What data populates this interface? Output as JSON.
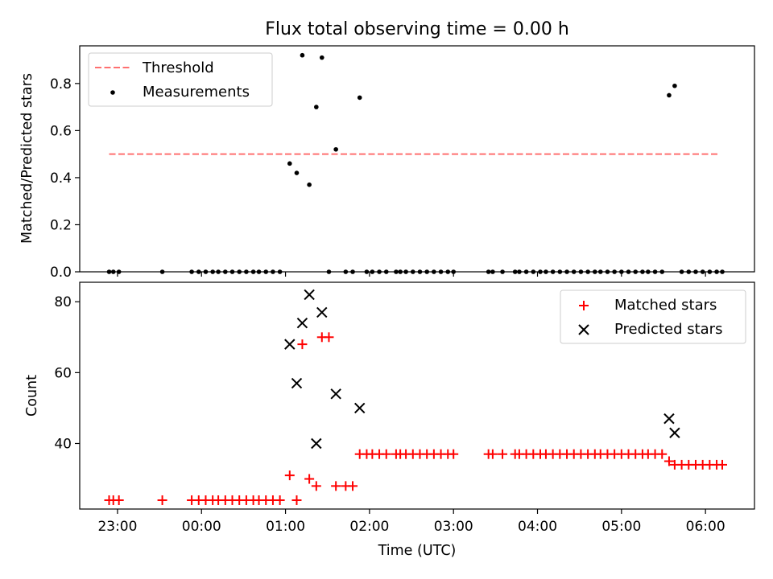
{
  "figure": {
    "title": "Flux total observing time = 0.00 h",
    "xlabel": "Time (UTC)"
  },
  "chart_data": [
    {
      "type": "scatter",
      "id": "ratio",
      "title": "Flux total observing time = 0.00 h",
      "ylabel": "Matched/Predicted stars",
      "xlim": [
        "22:33",
        "06:35"
      ],
      "ylim": [
        0,
        0.96
      ],
      "y_ticks": [
        0.0,
        0.2,
        0.4,
        0.6,
        0.8
      ],
      "y_tick_labels": [
        "0.0",
        "0.2",
        "0.4",
        "0.6",
        "0.8"
      ],
      "legend_position": "top-left",
      "series": [
        {
          "name": "Threshold",
          "kind": "line",
          "style": "dashed",
          "color": "#ff7070",
          "points": [
            {
              "x": "22:54",
              "y": 0.5
            },
            {
              "x": "06:10",
              "y": 0.5
            }
          ]
        },
        {
          "name": "Measurements",
          "kind": "scatter",
          "marker": "dot",
          "color": "#000000",
          "points": [
            {
              "x": "22:54",
              "y": 0
            },
            {
              "x": "22:57",
              "y": 0
            },
            {
              "x": "23:01",
              "y": 0
            },
            {
              "x": "23:32",
              "y": 0
            },
            {
              "x": "23:53",
              "y": 0
            },
            {
              "x": "23:58",
              "y": 0
            },
            {
              "x": "00:03",
              "y": 0
            },
            {
              "x": "00:08",
              "y": 0
            },
            {
              "x": "00:12",
              "y": 0
            },
            {
              "x": "00:17",
              "y": 0
            },
            {
              "x": "00:22",
              "y": 0
            },
            {
              "x": "00:27",
              "y": 0
            },
            {
              "x": "00:32",
              "y": 0
            },
            {
              "x": "00:37",
              "y": 0
            },
            {
              "x": "00:41",
              "y": 0
            },
            {
              "x": "00:46",
              "y": 0
            },
            {
              "x": "00:51",
              "y": 0
            },
            {
              "x": "00:56",
              "y": 0
            },
            {
              "x": "01:03",
              "y": 0.46
            },
            {
              "x": "01:08",
              "y": 0.42
            },
            {
              "x": "01:12",
              "y": 0.92
            },
            {
              "x": "01:17",
              "y": 0.37
            },
            {
              "x": "01:22",
              "y": 0.7
            },
            {
              "x": "01:26",
              "y": 0.91
            },
            {
              "x": "01:31",
              "y": 0
            },
            {
              "x": "01:36",
              "y": 0.52
            },
            {
              "x": "01:43",
              "y": 0
            },
            {
              "x": "01:48",
              "y": 0
            },
            {
              "x": "01:53",
              "y": 0.74
            },
            {
              "x": "01:58",
              "y": 0
            },
            {
              "x": "02:02",
              "y": 0
            },
            {
              "x": "02:07",
              "y": 0
            },
            {
              "x": "02:12",
              "y": 0
            },
            {
              "x": "02:19",
              "y": 0
            },
            {
              "x": "02:22",
              "y": 0
            },
            {
              "x": "02:26",
              "y": 0
            },
            {
              "x": "02:31",
              "y": 0
            },
            {
              "x": "02:36",
              "y": 0
            },
            {
              "x": "02:41",
              "y": 0
            },
            {
              "x": "02:46",
              "y": 0
            },
            {
              "x": "02:51",
              "y": 0
            },
            {
              "x": "02:56",
              "y": 0
            },
            {
              "x": "03:00",
              "y": 0
            },
            {
              "x": "03:25",
              "y": 0
            },
            {
              "x": "03:28",
              "y": 0
            },
            {
              "x": "03:35",
              "y": 0
            },
            {
              "x": "03:44",
              "y": 0
            },
            {
              "x": "03:47",
              "y": 0
            },
            {
              "x": "03:52",
              "y": 0
            },
            {
              "x": "03:57",
              "y": 0
            },
            {
              "x": "04:02",
              "y": 0
            },
            {
              "x": "04:06",
              "y": 0
            },
            {
              "x": "04:11",
              "y": 0
            },
            {
              "x": "04:16",
              "y": 0
            },
            {
              "x": "04:21",
              "y": 0
            },
            {
              "x": "04:26",
              "y": 0
            },
            {
              "x": "04:31",
              "y": 0
            },
            {
              "x": "04:36",
              "y": 0
            },
            {
              "x": "04:41",
              "y": 0
            },
            {
              "x": "04:45",
              "y": 0
            },
            {
              "x": "04:50",
              "y": 0
            },
            {
              "x": "04:55",
              "y": 0
            },
            {
              "x": "05:00",
              "y": 0
            },
            {
              "x": "05:05",
              "y": 0
            },
            {
              "x": "05:10",
              "y": 0
            },
            {
              "x": "05:15",
              "y": 0
            },
            {
              "x": "05:19",
              "y": 0
            },
            {
              "x": "05:24",
              "y": 0
            },
            {
              "x": "05:29",
              "y": 0
            },
            {
              "x": "05:34",
              "y": 0.75
            },
            {
              "x": "05:38",
              "y": 0.79
            },
            {
              "x": "05:43",
              "y": 0
            },
            {
              "x": "05:48",
              "y": 0
            },
            {
              "x": "05:53",
              "y": 0
            },
            {
              "x": "05:58",
              "y": 0
            },
            {
              "x": "06:03",
              "y": 0
            },
            {
              "x": "06:08",
              "y": 0
            },
            {
              "x": "06:12",
              "y": 0
            }
          ]
        }
      ]
    },
    {
      "type": "scatter",
      "id": "counts",
      "ylabel": "Count",
      "xlim": [
        "22:33",
        "06:35"
      ],
      "ylim": [
        21.5,
        85.5
      ],
      "y_ticks": [
        40,
        60,
        80
      ],
      "y_tick_labels": [
        "40",
        "60",
        "80"
      ],
      "x_ticks": [
        "23:00",
        "00:00",
        "01:00",
        "02:00",
        "03:00",
        "04:00",
        "05:00",
        "06:00"
      ],
      "x_tick_labels": [
        "23:00",
        "00:00",
        "01:00",
        "02:00",
        "03:00",
        "04:00",
        "05:00",
        "06:00"
      ],
      "legend_position": "top-right",
      "series": [
        {
          "name": "Matched stars",
          "kind": "scatter",
          "marker": "plus",
          "color": "#ff0000",
          "points": [
            {
              "x": "22:54",
              "y": 24
            },
            {
              "x": "22:57",
              "y": 24
            },
            {
              "x": "23:01",
              "y": 24
            },
            {
              "x": "23:32",
              "y": 24
            },
            {
              "x": "23:53",
              "y": 24
            },
            {
              "x": "23:58",
              "y": 24
            },
            {
              "x": "00:03",
              "y": 24
            },
            {
              "x": "00:08",
              "y": 24
            },
            {
              "x": "00:12",
              "y": 24
            },
            {
              "x": "00:17",
              "y": 24
            },
            {
              "x": "00:22",
              "y": 24
            },
            {
              "x": "00:27",
              "y": 24
            },
            {
              "x": "00:32",
              "y": 24
            },
            {
              "x": "00:37",
              "y": 24
            },
            {
              "x": "00:41",
              "y": 24
            },
            {
              "x": "00:46",
              "y": 24
            },
            {
              "x": "00:51",
              "y": 24
            },
            {
              "x": "00:56",
              "y": 24
            },
            {
              "x": "01:03",
              "y": 31
            },
            {
              "x": "01:08",
              "y": 24
            },
            {
              "x": "01:12",
              "y": 68
            },
            {
              "x": "01:17",
              "y": 30
            },
            {
              "x": "01:22",
              "y": 28
            },
            {
              "x": "01:26",
              "y": 70
            },
            {
              "x": "01:31",
              "y": 70
            },
            {
              "x": "01:36",
              "y": 28
            },
            {
              "x": "01:43",
              "y": 28
            },
            {
              "x": "01:48",
              "y": 28
            },
            {
              "x": "01:53",
              "y": 37
            },
            {
              "x": "01:58",
              "y": 37
            },
            {
              "x": "02:02",
              "y": 37
            },
            {
              "x": "02:07",
              "y": 37
            },
            {
              "x": "02:12",
              "y": 37
            },
            {
              "x": "02:19",
              "y": 37
            },
            {
              "x": "02:22",
              "y": 37
            },
            {
              "x": "02:26",
              "y": 37
            },
            {
              "x": "02:31",
              "y": 37
            },
            {
              "x": "02:36",
              "y": 37
            },
            {
              "x": "02:41",
              "y": 37
            },
            {
              "x": "02:46",
              "y": 37
            },
            {
              "x": "02:51",
              "y": 37
            },
            {
              "x": "02:56",
              "y": 37
            },
            {
              "x": "03:00",
              "y": 37
            },
            {
              "x": "03:25",
              "y": 37
            },
            {
              "x": "03:28",
              "y": 37
            },
            {
              "x": "03:35",
              "y": 37
            },
            {
              "x": "03:44",
              "y": 37
            },
            {
              "x": "03:47",
              "y": 37
            },
            {
              "x": "03:52",
              "y": 37
            },
            {
              "x": "03:57",
              "y": 37
            },
            {
              "x": "04:02",
              "y": 37
            },
            {
              "x": "04:06",
              "y": 37
            },
            {
              "x": "04:11",
              "y": 37
            },
            {
              "x": "04:16",
              "y": 37
            },
            {
              "x": "04:21",
              "y": 37
            },
            {
              "x": "04:26",
              "y": 37
            },
            {
              "x": "04:31",
              "y": 37
            },
            {
              "x": "04:36",
              "y": 37
            },
            {
              "x": "04:41",
              "y": 37
            },
            {
              "x": "04:45",
              "y": 37
            },
            {
              "x": "04:50",
              "y": 37
            },
            {
              "x": "04:55",
              "y": 37
            },
            {
              "x": "05:00",
              "y": 37
            },
            {
              "x": "05:05",
              "y": 37
            },
            {
              "x": "05:10",
              "y": 37
            },
            {
              "x": "05:15",
              "y": 37
            },
            {
              "x": "05:19",
              "y": 37
            },
            {
              "x": "05:24",
              "y": 37
            },
            {
              "x": "05:29",
              "y": 37
            },
            {
              "x": "05:34",
              "y": 35
            },
            {
              "x": "05:38",
              "y": 34
            },
            {
              "x": "05:43",
              "y": 34
            },
            {
              "x": "05:48",
              "y": 34
            },
            {
              "x": "05:53",
              "y": 34
            },
            {
              "x": "05:58",
              "y": 34
            },
            {
              "x": "06:03",
              "y": 34
            },
            {
              "x": "06:08",
              "y": 34
            },
            {
              "x": "06:12",
              "y": 34
            }
          ]
        },
        {
          "name": "Predicted stars",
          "kind": "scatter",
          "marker": "x",
          "color": "#000000",
          "points": [
            {
              "x": "01:03",
              "y": 68
            },
            {
              "x": "01:08",
              "y": 57
            },
            {
              "x": "01:12",
              "y": 74
            },
            {
              "x": "01:17",
              "y": 82
            },
            {
              "x": "01:22",
              "y": 40
            },
            {
              "x": "01:26",
              "y": 77
            },
            {
              "x": "01:36",
              "y": 54
            },
            {
              "x": "01:53",
              "y": 50
            },
            {
              "x": "05:34",
              "y": 47
            },
            {
              "x": "05:38",
              "y": 43
            }
          ]
        }
      ]
    }
  ]
}
